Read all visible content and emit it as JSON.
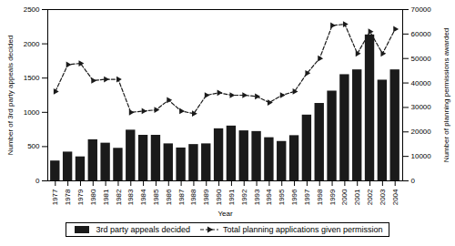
{
  "chart_data": {
    "type": "bar",
    "xlabel": "Year",
    "ylabel": "Number of 3rd party appeals decided",
    "y2label": "Number of planning permissions awarded",
    "x": [
      1977,
      1978,
      1979,
      1980,
      1981,
      1982,
      1983,
      1984,
      1985,
      1986,
      1987,
      1988,
      1989,
      1990,
      1991,
      1992,
      1993,
      1994,
      1995,
      1996,
      1997,
      1998,
      1999,
      2000,
      2001,
      2002,
      2003,
      2004
    ],
    "xlim": [
      1976.4,
      2004.6
    ],
    "xticks": [
      1977,
      1978,
      1979,
      1980,
      1981,
      1982,
      1983,
      1984,
      1985,
      1986,
      1987,
      1988,
      1989,
      1990,
      1991,
      1992,
      1993,
      1994,
      1995,
      1996,
      1997,
      1998,
      1999,
      2000,
      2001,
      2002,
      2003,
      2004
    ],
    "ylim": [
      0,
      2500
    ],
    "yticks": [
      0,
      500,
      1000,
      1500,
      2000,
      2500
    ],
    "y2lim": [
      0,
      70000
    ],
    "y2ticks": [
      0,
      10000,
      20000,
      30000,
      40000,
      50000,
      60000,
      70000
    ],
    "grid": false,
    "legend": "bottom",
    "series": [
      {
        "name": "3rd party appeals decided",
        "type": "bar",
        "color": "#1a1a1a",
        "values": [
          290,
          420,
          350,
          600,
          550,
          475,
          740,
          665,
          665,
          540,
          480,
          530,
          540,
          760,
          800,
          730,
          720,
          630,
          575,
          660,
          960,
          1130,
          1310,
          1550,
          1620,
          2130,
          1470,
          1620
        ]
      },
      {
        "name": "Total planning applications given permission",
        "type": "line",
        "axis": "y2",
        "color": "#1a1a1a",
        "marker": "triangle-right",
        "line_style": "dashed",
        "values": [
          36500,
          47500,
          48000,
          41000,
          41500,
          41500,
          28000,
          28500,
          29000,
          33000,
          28500,
          27500,
          35000,
          36000,
          35000,
          35000,
          34500,
          32000,
          35000,
          36500,
          44000,
          50000,
          63500,
          64000,
          52000,
          61000,
          52000,
          62000
        ]
      }
    ]
  }
}
